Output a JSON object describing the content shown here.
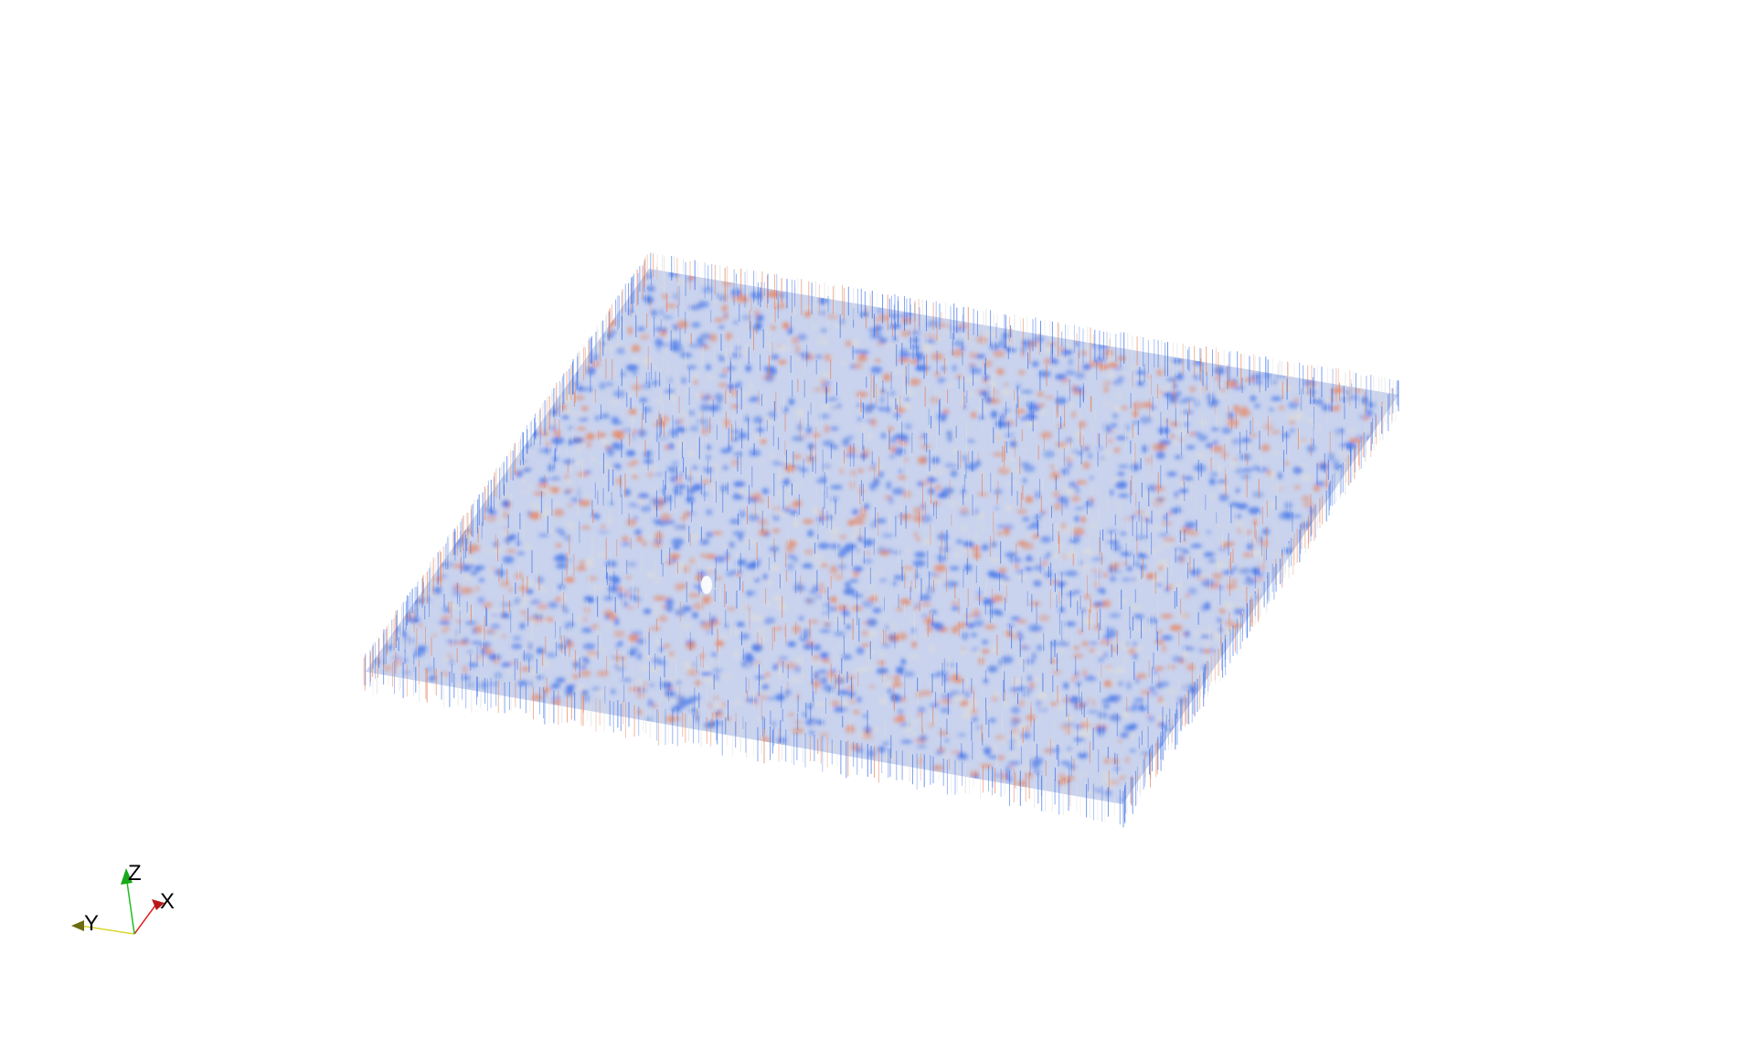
{
  "scene": {
    "background": "#ffffff",
    "colormap": {
      "name": "cool-to-warm",
      "low": "#3b6fe8",
      "mid": "#dcdcdc",
      "high": "#e8825a"
    },
    "object": "volumetric-slab"
  },
  "orientation_axes": {
    "x": {
      "label": "X",
      "color": "#e02020"
    },
    "y": {
      "label": "Y",
      "color": "#d8d830"
    },
    "z": {
      "label": "Z",
      "color": "#20c020"
    }
  }
}
